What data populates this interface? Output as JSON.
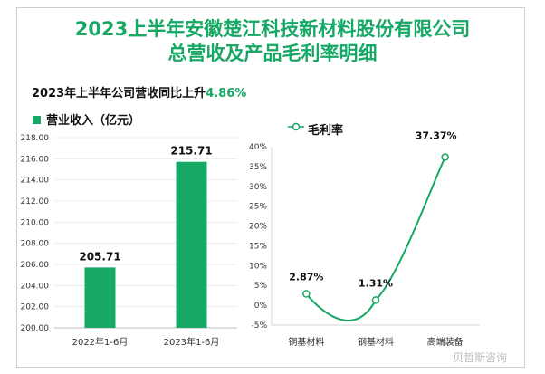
{
  "title_line1": "2023上半年安徽楚江科技新材料股份有限公司",
  "title_line2": "总营收及产品毛利率明细",
  "subtitle_prefix": "2023年上半年公司营收同比上升",
  "subtitle_value": "4.86%",
  "watermark": "贝哲斯咨询",
  "colors": {
    "accent": "#16a864"
  },
  "chart_data": [
    {
      "type": "bar",
      "legend": "营业收入（亿元）",
      "categories": [
        "2022年1-6月",
        "2023年1-6月"
      ],
      "values": [
        205.71,
        215.71
      ],
      "data_labels": [
        "205.71",
        "215.71"
      ],
      "ylim": [
        200,
        218
      ],
      "yticks": [
        "200.00",
        "202.00",
        "204.00",
        "206.00",
        "208.00",
        "210.00",
        "212.00",
        "214.00",
        "216.00",
        "218.00"
      ]
    },
    {
      "type": "line",
      "legend": "毛利率",
      "categories": [
        "铜基材料",
        "钢基材料",
        "高端装备"
      ],
      "values": [
        2.87,
        1.31,
        37.37
      ],
      "data_labels": [
        "2.87%",
        "1.31%",
        "37.37%"
      ],
      "ylim": [
        -5,
        40
      ],
      "yticks": [
        "-5%",
        "0%",
        "5%",
        "10%",
        "15%",
        "20%",
        "25%",
        "30%",
        "35%",
        "40%"
      ]
    }
  ]
}
